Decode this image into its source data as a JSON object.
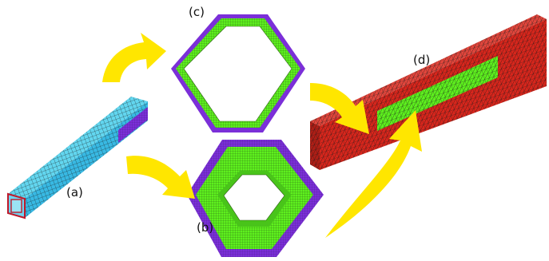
{
  "labels": {
    "a": "(a)",
    "b": "(b)",
    "c": "(c)",
    "d": "(d)"
  },
  "colors": {
    "arrow": "#ffe600",
    "cyan_mesh": "#3fc8e8",
    "purple": "#7b2fd8",
    "green": "#5ef01e",
    "red": "#d8261c",
    "mesh_line": "#1a1a1a"
  }
}
